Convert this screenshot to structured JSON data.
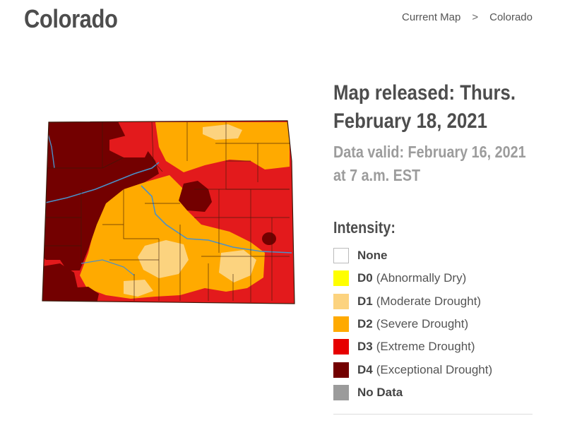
{
  "header": {
    "title": "Colorado",
    "breadcrumb": {
      "items": [
        "Current Map",
        "Colorado"
      ],
      "separator": ">"
    }
  },
  "release_info": {
    "released_line1": "Map released: Thurs.",
    "released_line2": "February 18, 2021",
    "valid_line1": "Data valid: February 16, 2021",
    "valid_line2": "at 7 a.m. EST"
  },
  "legend": {
    "title": "Intensity:",
    "items": [
      {
        "code": "None",
        "desc": "",
        "color": "#ffffff"
      },
      {
        "code": "D0",
        "desc": "(Abnormally Dry)",
        "color": "#ffff00"
      },
      {
        "code": "D1",
        "desc": "(Moderate Drought)",
        "color": "#fcd37f"
      },
      {
        "code": "D2",
        "desc": "(Severe Drought)",
        "color": "#ffaa00"
      },
      {
        "code": "D3",
        "desc": "(Extreme Drought)",
        "color": "#e60000"
      },
      {
        "code": "D4",
        "desc": "(Exceptional Drought)",
        "color": "#730000"
      },
      {
        "code": "No Data",
        "desc": "",
        "color": "#9b9b9b"
      }
    ]
  },
  "map": {
    "region": "Colorado",
    "colors": {
      "D1": "#fcd37f",
      "D2": "#ffaa00",
      "D3": "#e31a1c",
      "D4": "#730000",
      "river": "#4a90c8",
      "border": "#3a1a0a"
    }
  }
}
